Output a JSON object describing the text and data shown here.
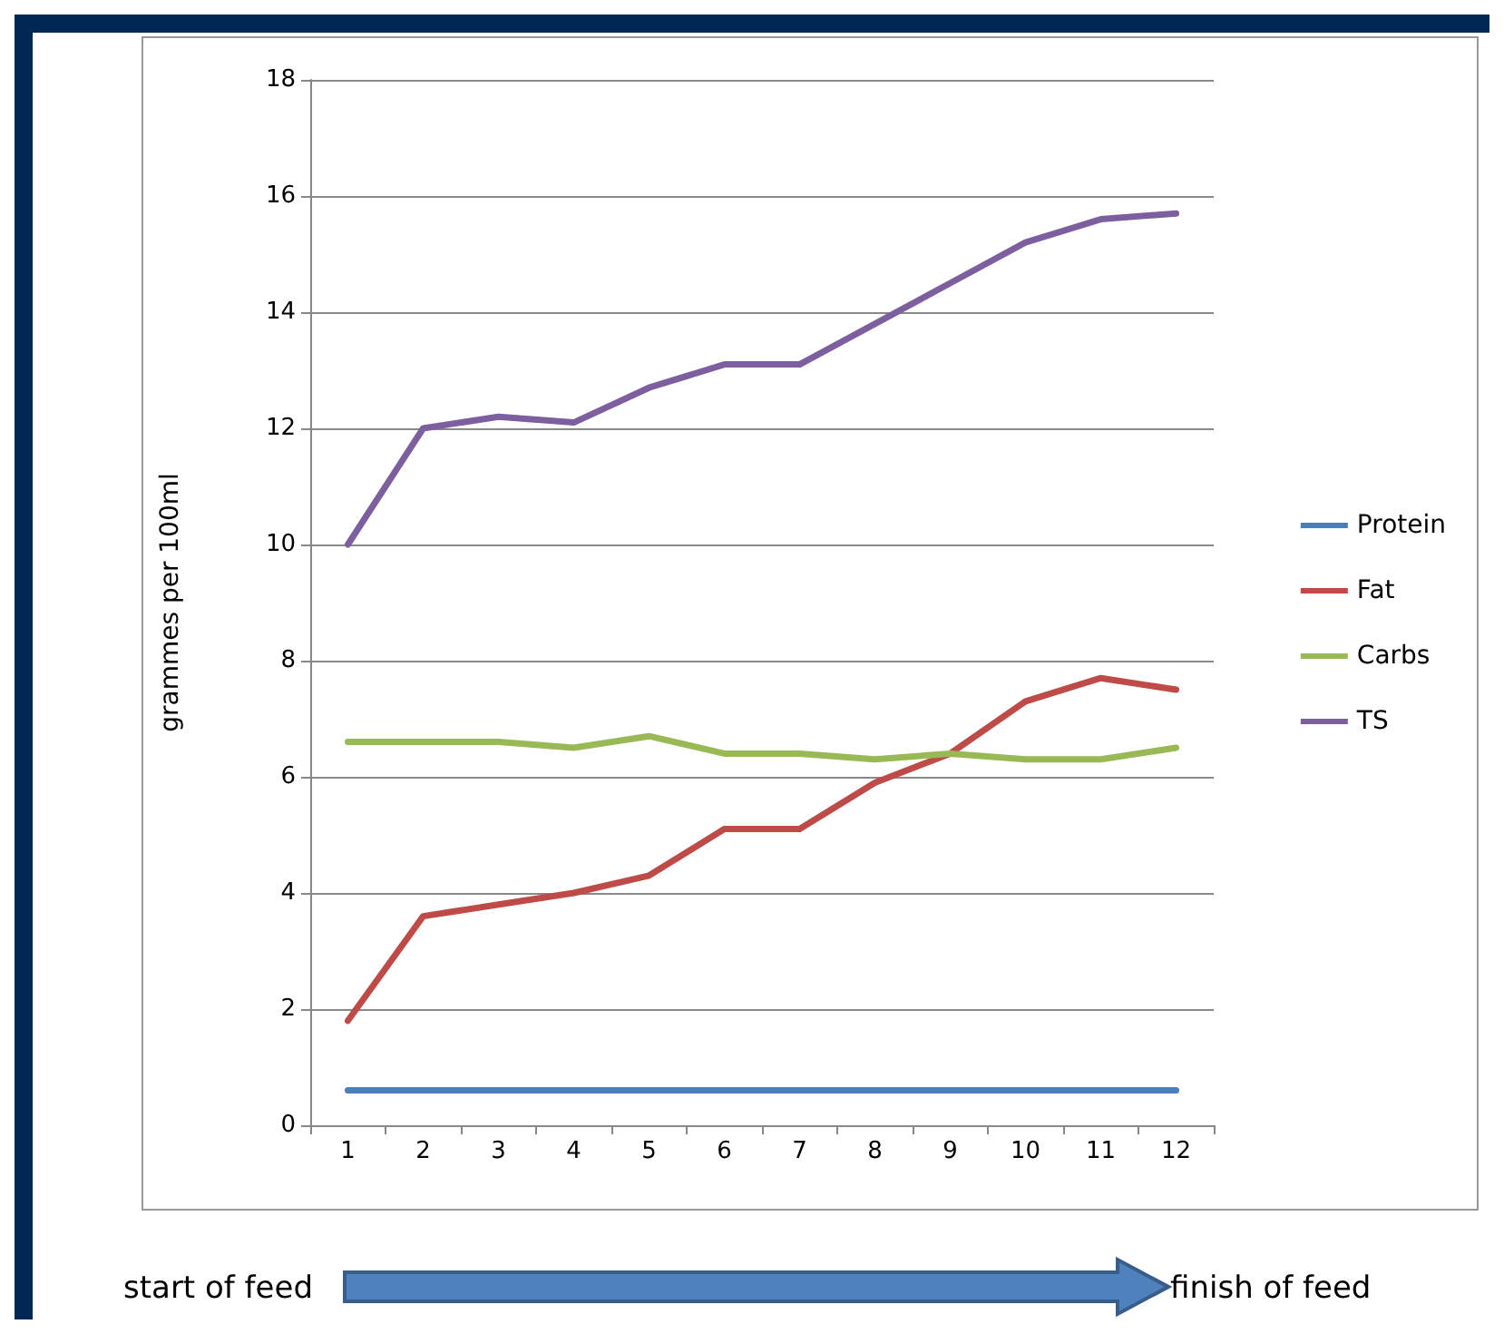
{
  "chart_data": {
    "type": "line",
    "ylabel": "grammes per 100ml",
    "categories": [
      "1",
      "2",
      "3",
      "4",
      "5",
      "6",
      "7",
      "8",
      "9",
      "10",
      "11",
      "12"
    ],
    "series": [
      {
        "name": "Protein",
        "color": "#4a7ebb",
        "values": [
          0.6,
          0.6,
          0.6,
          0.6,
          0.6,
          0.6,
          0.6,
          0.6,
          0.6,
          0.6,
          0.6,
          0.6
        ]
      },
      {
        "name": "Fat",
        "color": "#be4b48",
        "values": [
          1.8,
          3.6,
          3.8,
          4.0,
          4.3,
          5.1,
          5.1,
          5.9,
          6.4,
          7.3,
          7.7,
          7.5
        ]
      },
      {
        "name": "Carbs",
        "color": "#98b954",
        "values": [
          6.6,
          6.6,
          6.6,
          6.5,
          6.7,
          6.4,
          6.4,
          6.3,
          6.4,
          6.3,
          6.3,
          6.5
        ]
      },
      {
        "name": "TS",
        "color": "#7d5fa0",
        "values": [
          10,
          12,
          12.2,
          12.1,
          12.7,
          13.1,
          13.1,
          13.8,
          14.5,
          15.2,
          15.6,
          15.7
        ]
      }
    ],
    "ylim": [
      0,
      18
    ],
    "yticks": [
      0,
      2,
      4,
      6,
      8,
      10,
      12,
      14,
      16,
      18
    ],
    "grid": "y",
    "legend": "right",
    "marker": "none",
    "line_style": "solid",
    "annotations": [
      "start of feed",
      "finish of feed"
    ]
  }
}
